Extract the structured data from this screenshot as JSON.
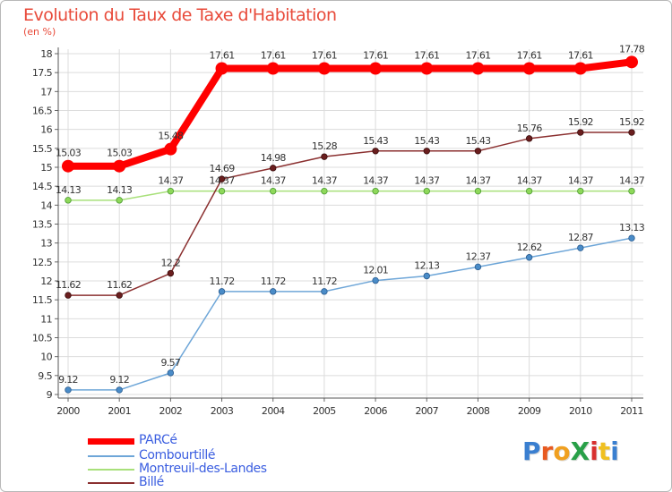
{
  "title": "Evolution du Taux de Taxe d'Habitation",
  "subtitle": "(en %)",
  "logo_text": "ProXiti",
  "chart_data": {
    "type": "line",
    "title": "Evolution du Taux de Taxe d'Habitation",
    "subtitle": "(en %)",
    "xlabel": "",
    "ylabel": "",
    "x": [
      "2000",
      "2001",
      "2002",
      "2003",
      "2004",
      "2005",
      "2006",
      "2007",
      "2008",
      "2009",
      "2010",
      "2011"
    ],
    "ylim": [
      9,
      18
    ],
    "yticks": [
      "9",
      "9.5",
      "10",
      "10.5",
      "11",
      "11.5",
      "12",
      "12.5",
      "13",
      "13.5",
      "14",
      "14.5",
      "15",
      "15.5",
      "16",
      "16.5",
      "17",
      "17.5",
      "18"
    ],
    "grid": true,
    "legend_position": "bottom-left",
    "series": [
      {
        "name": "PARCé",
        "color": "#ff0000",
        "values": [
          15.03,
          15.03,
          15.48,
          17.61,
          17.61,
          17.61,
          17.61,
          17.61,
          17.61,
          17.61,
          17.61,
          17.78
        ],
        "labels": [
          "15.03",
          "15.03",
          "15.48",
          "17.61",
          "17.61",
          "17.61",
          "17.61",
          "17.61",
          "17.61",
          "17.61",
          "17.61",
          "17.78"
        ]
      },
      {
        "name": "Combourtillé",
        "color": "#6ea6d8",
        "values": [
          9.12,
          9.12,
          9.57,
          11.72,
          11.72,
          11.72,
          12.01,
          12.13,
          12.37,
          12.62,
          12.87,
          13.13
        ],
        "labels": [
          "9.12",
          "9.12",
          "9.57",
          "11.72",
          "11.72",
          "11.72",
          "12.01",
          "12.13",
          "12.37",
          "12.62",
          "12.87",
          "13.13"
        ]
      },
      {
        "name": "Montreuil-des-Landes",
        "color": "#a8e07a",
        "values": [
          14.13,
          14.13,
          14.37,
          14.37,
          14.37,
          14.37,
          14.37,
          14.37,
          14.37,
          14.37,
          14.37,
          14.37
        ],
        "labels": [
          "14.13",
          "14.13",
          "14.37",
          "14.37",
          "14.37",
          "14.37",
          "14.37",
          "14.37",
          "14.37",
          "14.37",
          "14.37",
          "14.37"
        ]
      },
      {
        "name": "Billé",
        "color": "#8b3030",
        "values": [
          11.62,
          11.62,
          12.2,
          14.69,
          14.98,
          15.28,
          15.43,
          15.43,
          15.43,
          15.76,
          15.92,
          15.92
        ],
        "labels": [
          "11.62",
          "11.62",
          "12.2",
          "14.69",
          "14.98",
          "15.28",
          "15.43",
          "15.43",
          "15.43",
          "15.76",
          "15.92",
          "15.92"
        ]
      }
    ]
  }
}
